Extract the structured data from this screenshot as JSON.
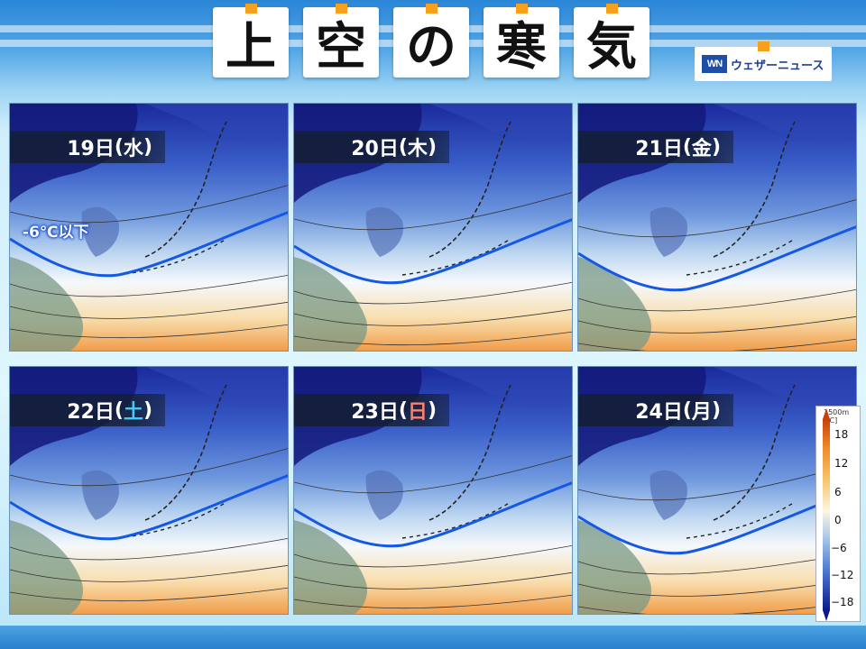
{
  "title": {
    "chars": [
      "上",
      "空",
      "の",
      "寒",
      "気"
    ]
  },
  "logo": {
    "mark": "WN",
    "text": "ウェザーニュース"
  },
  "colors": {
    "accent_tick": "#f7a01b",
    "isoline": "#1458e6",
    "saturday": "#47c7f5",
    "sunday": "#ff7f6b"
  },
  "panels": [
    {
      "date": "19日",
      "dow_open": "(",
      "dow": "水",
      "dow_close": ")",
      "dow_type": "weekday"
    },
    {
      "date": "20日",
      "dow_open": "(",
      "dow": "木",
      "dow_close": ")",
      "dow_type": "weekday"
    },
    {
      "date": "21日",
      "dow_open": "(",
      "dow": "金",
      "dow_close": ")",
      "dow_type": "weekday"
    },
    {
      "date": "22日",
      "dow_open": "(",
      "dow": "土",
      "dow_close": ")",
      "dow_type": "saturday"
    },
    {
      "date": "23日",
      "dow_open": "(",
      "dow": "日",
      "dow_close": ")",
      "dow_type": "sunday"
    },
    {
      "date": "24日",
      "dow_open": "(",
      "dow": "月",
      "dow_close": ")",
      "dow_type": "weekday"
    }
  ],
  "annotation": "-6℃以下",
  "legend": {
    "unit_line1": "1500m",
    "unit_line2": "[℃]",
    "labels": [
      "18",
      "12",
      "6",
      "0",
      "−6",
      "−12",
      "−18"
    ]
  }
}
